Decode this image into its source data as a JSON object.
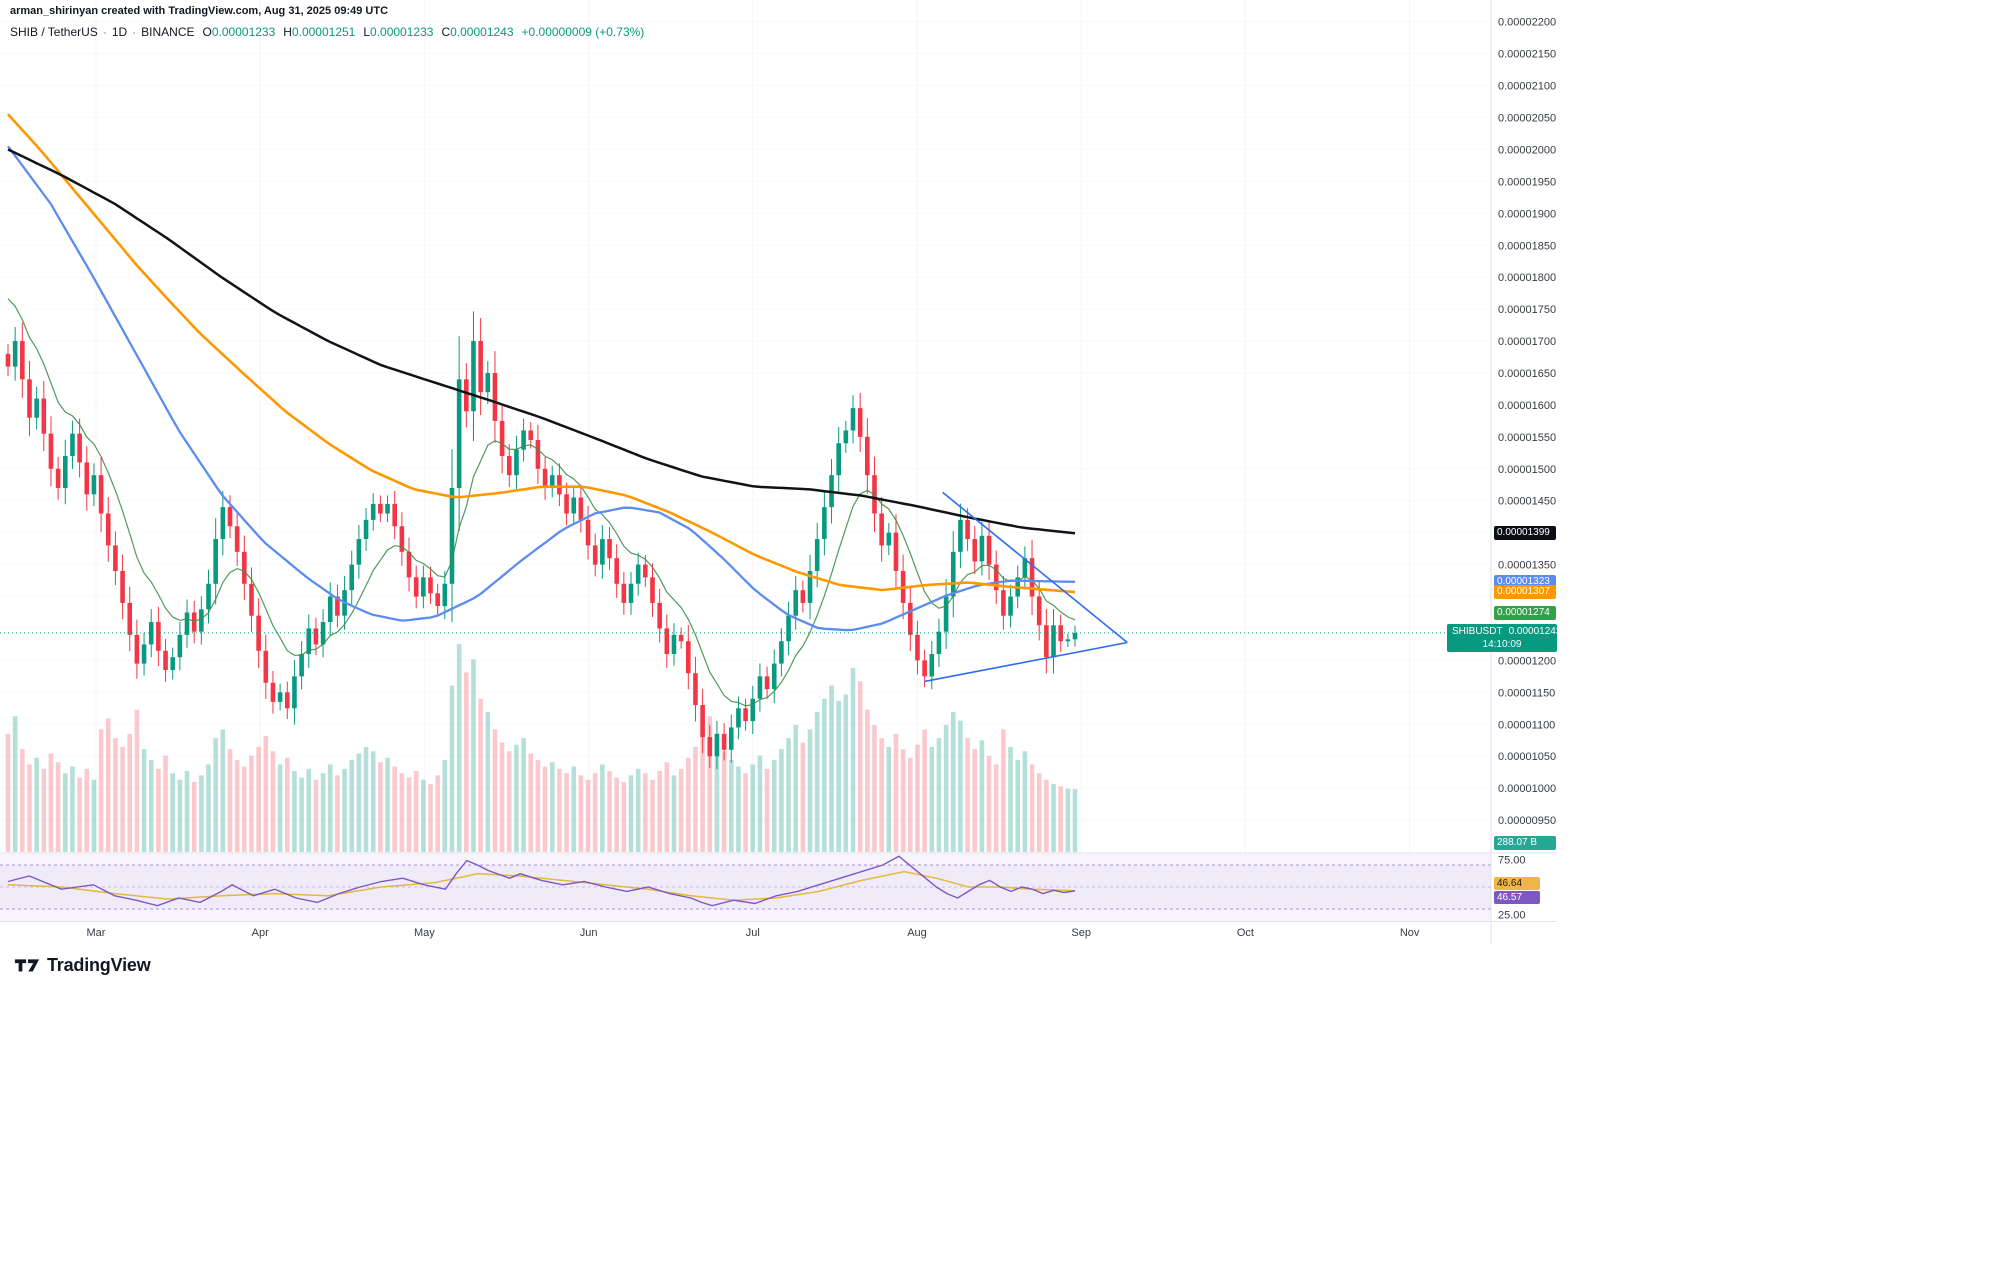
{
  "attribution": "arman_shirinyan created with TradingView.com, Aug 31, 2025 09:49 UTC",
  "header": {
    "symbol": "SHIB / TetherUS",
    "separator": "·",
    "interval": "1D",
    "exchange": "BINANCE",
    "ohlc": [
      {
        "label": "O",
        "value": "0.00001233"
      },
      {
        "label": "H",
        "value": "0.00001251"
      },
      {
        "label": "L",
        "value": "0.00001233"
      },
      {
        "label": "C",
        "value": "0.00001243"
      }
    ],
    "change": "+0.00000009 (+0.73%)"
  },
  "tags": {
    "ma_black": {
      "value": "0.00001399",
      "price": 1399,
      "bg": "#0c0e15",
      "fg": "#ffffff"
    },
    "ma_blue": {
      "value": "0.00001323",
      "price": 1323,
      "bg": "#5b8cf0",
      "fg": "#ffffff"
    },
    "ma_orange": {
      "value": "0.00001307",
      "price": 1307,
      "bg": "#ff9800",
      "fg": "#ffffff"
    },
    "ma_green": {
      "value": "0.00001274",
      "price": 1274,
      "bg": "#33a04a",
      "fg": "#ffffff"
    },
    "price": {
      "symbol": "SHIBUSDT",
      "value": "0.00001243",
      "countdown": "14:10:09",
      "price": 1243,
      "bg": "#089981",
      "fg": "#ffffff"
    },
    "volume": {
      "value": "288.07 B",
      "bg": "#27a795",
      "fg": "#ffffff"
    },
    "rsi_yellow": {
      "value": "46.64",
      "bg": "#efb547",
      "fg": "#1c1c1c"
    },
    "rsi_purple": {
      "value": "46.57",
      "bg": "#7e57c2",
      "fg": "#ffffff"
    },
    "rsi_upper": "75.00",
    "rsi_lower": "25.00"
  },
  "logo": {
    "text": "TradingView"
  },
  "chart_data": {
    "type": "candlestick",
    "symbol": "SHIBUSDT",
    "exchange": "BINANCE",
    "interval": "1D",
    "title": "SHIB / TetherUS · 1D · BINANCE",
    "price_unit": "1e-8 USDT (1243 = 0.00001243)",
    "ylim": [
      900,
      2234
    ],
    "tick_start": 2200,
    "tick_step": 50,
    "tick_end": 950,
    "months": [
      "Mar",
      "Apr",
      "May",
      "Jun",
      "Jul",
      "Aug",
      "Sep",
      "Oct",
      "Nov"
    ],
    "last_candle": {
      "o": "0.00001233",
      "h": "0.00001251",
      "l": "0.00001233",
      "c": "0.00001243"
    },
    "first_open": 1680,
    "closes": [
      1660,
      1700,
      1640,
      1580,
      1610,
      1555,
      1500,
      1470,
      1520,
      1555,
      1510,
      1460,
      1490,
      1430,
      1380,
      1340,
      1290,
      1240,
      1195,
      1225,
      1260,
      1215,
      1185,
      1205,
      1240,
      1275,
      1245,
      1280,
      1320,
      1390,
      1440,
      1410,
      1370,
      1320,
      1270,
      1215,
      1165,
      1135,
      1150,
      1125,
      1175,
      1210,
      1250,
      1225,
      1260,
      1300,
      1270,
      1310,
      1350,
      1390,
      1420,
      1445,
      1430,
      1445,
      1410,
      1370,
      1330,
      1300,
      1330,
      1305,
      1285,
      1320,
      1470,
      1640,
      1590,
      1700,
      1620,
      1650,
      1575,
      1520,
      1490,
      1530,
      1560,
      1545,
      1500,
      1470,
      1490,
      1460,
      1430,
      1455,
      1420,
      1380,
      1350,
      1390,
      1360,
      1320,
      1290,
      1320,
      1350,
      1330,
      1290,
      1250,
      1210,
      1240,
      1230,
      1180,
      1130,
      1080,
      1050,
      1085,
      1060,
      1095,
      1125,
      1105,
      1140,
      1175,
      1155,
      1195,
      1230,
      1270,
      1310,
      1290,
      1340,
      1390,
      1440,
      1490,
      1540,
      1560,
      1595,
      1550,
      1490,
      1430,
      1380,
      1400,
      1340,
      1290,
      1240,
      1200,
      1175,
      1210,
      1245,
      1300,
      1370,
      1420,
      1390,
      1355,
      1395,
      1350,
      1310,
      1270,
      1300,
      1330,
      1360,
      1300,
      1255,
      1205,
      1255,
      1230,
      1233,
      1243
    ],
    "volumes_billions": [
      540,
      620,
      470,
      400,
      430,
      380,
      450,
      410,
      360,
      390,
      340,
      380,
      330,
      560,
      610,
      520,
      480,
      540,
      650,
      470,
      420,
      380,
      440,
      360,
      330,
      370,
      320,
      350,
      400,
      520,
      560,
      470,
      420,
      390,
      440,
      480,
      530,
      460,
      400,
      430,
      370,
      340,
      380,
      330,
      360,
      400,
      350,
      380,
      420,
      450,
      480,
      460,
      410,
      430,
      390,
      360,
      340,
      370,
      330,
      310,
      350,
      420,
      760,
      950,
      820,
      880,
      700,
      640,
      560,
      500,
      460,
      490,
      520,
      450,
      420,
      390,
      410,
      380,
      360,
      390,
      350,
      330,
      360,
      400,
      370,
      340,
      320,
      350,
      380,
      360,
      330,
      370,
      410,
      350,
      380,
      430,
      480,
      560,
      620,
      540,
      460,
      420,
      390,
      360,
      400,
      440,
      380,
      420,
      470,
      520,
      580,
      500,
      560,
      640,
      700,
      760,
      690,
      720,
      840,
      780,
      650,
      580,
      520,
      480,
      540,
      470,
      430,
      490,
      560,
      480,
      520,
      580,
      640,
      600,
      520,
      470,
      510,
      440,
      400,
      560,
      480,
      420,
      460,
      400,
      360,
      330,
      310,
      300,
      290,
      288.07
    ],
    "volume_max_scale": 950,
    "last_volume": "288.07 B",
    "ma_overlays": [
      {
        "name": "ma-black-slow",
        "color": "#101418",
        "last": 1399,
        "points": [
          [
            0,
            2000
          ],
          [
            0.05,
            1960
          ],
          [
            0.1,
            1915
          ],
          [
            0.15,
            1860
          ],
          [
            0.2,
            1800
          ],
          [
            0.25,
            1745
          ],
          [
            0.3,
            1700
          ],
          [
            0.35,
            1662
          ],
          [
            0.4,
            1635
          ],
          [
            0.45,
            1608
          ],
          [
            0.5,
            1580
          ],
          [
            0.55,
            1548
          ],
          [
            0.6,
            1515
          ],
          [
            0.65,
            1488
          ],
          [
            0.7,
            1472
          ],
          [
            0.75,
            1468
          ],
          [
            0.8,
            1458
          ],
          [
            0.85,
            1442
          ],
          [
            0.9,
            1424
          ],
          [
            0.95,
            1408
          ],
          [
            1,
            1399
          ]
        ]
      },
      {
        "name": "ma-orange-mid",
        "color": "#ff9800",
        "last": 1307,
        "points": [
          [
            0,
            2055
          ],
          [
            0.03,
            2000
          ],
          [
            0.06,
            1940
          ],
          [
            0.09,
            1880
          ],
          [
            0.12,
            1820
          ],
          [
            0.15,
            1765
          ],
          [
            0.18,
            1712
          ],
          [
            0.22,
            1650
          ],
          [
            0.26,
            1590
          ],
          [
            0.3,
            1540
          ],
          [
            0.34,
            1498
          ],
          [
            0.38,
            1468
          ],
          [
            0.42,
            1455
          ],
          [
            0.46,
            1462
          ],
          [
            0.5,
            1472
          ],
          [
            0.54,
            1472
          ],
          [
            0.58,
            1458
          ],
          [
            0.62,
            1432
          ],
          [
            0.66,
            1400
          ],
          [
            0.7,
            1365
          ],
          [
            0.74,
            1338
          ],
          [
            0.78,
            1318
          ],
          [
            0.82,
            1310
          ],
          [
            0.86,
            1318
          ],
          [
            0.9,
            1322
          ],
          [
            0.94,
            1315
          ],
          [
            1,
            1307
          ]
        ]
      },
      {
        "name": "ma-blue-fast",
        "color": "#5b8cf0",
        "last": 1323,
        "points": [
          [
            0,
            2005
          ],
          [
            0.04,
            1915
          ],
          [
            0.08,
            1800
          ],
          [
            0.12,
            1680
          ],
          [
            0.16,
            1560
          ],
          [
            0.2,
            1460
          ],
          [
            0.24,
            1385
          ],
          [
            0.28,
            1330
          ],
          [
            0.31,
            1295
          ],
          [
            0.34,
            1272
          ],
          [
            0.37,
            1262
          ],
          [
            0.4,
            1268
          ],
          [
            0.44,
            1300
          ],
          [
            0.48,
            1355
          ],
          [
            0.52,
            1405
          ],
          [
            0.55,
            1430
          ],
          [
            0.58,
            1440
          ],
          [
            0.61,
            1432
          ],
          [
            0.64,
            1405
          ],
          [
            0.67,
            1360
          ],
          [
            0.7,
            1310
          ],
          [
            0.73,
            1272
          ],
          [
            0.76,
            1250
          ],
          [
            0.79,
            1247
          ],
          [
            0.82,
            1258
          ],
          [
            0.85,
            1280
          ],
          [
            0.88,
            1302
          ],
          [
            0.91,
            1318
          ],
          [
            0.94,
            1325
          ],
          [
            1,
            1323
          ]
        ]
      },
      {
        "name": "ema-green-short",
        "color": "#3c8f46",
        "last": 1274,
        "period": 10,
        "seed": 1790
      }
    ],
    "trendlines": [
      {
        "x1": 0.876,
        "p1": 1463,
        "x2": 1.049,
        "p2": 1228,
        "color": "#2e6bf0"
      },
      {
        "x1": 0.859,
        "p1": 1167,
        "x2": 1.049,
        "p2": 1228,
        "color": "#2e6bf0"
      }
    ],
    "current_price": 1243,
    "rsi": {
      "last": 46.57,
      "ma_last": 46.64,
      "levels": [
        70,
        50,
        30
      ],
      "range_labels": [
        "75.00",
        "25.00"
      ],
      "line_color": "#7e57c2",
      "ma_color": "#e2b93e",
      "purple_points": [
        [
          0,
          55
        ],
        [
          0.02,
          60
        ],
        [
          0.05,
          48
        ],
        [
          0.08,
          52
        ],
        [
          0.1,
          42
        ],
        [
          0.12,
          38
        ],
        [
          0.14,
          33
        ],
        [
          0.16,
          40
        ],
        [
          0.18,
          36
        ],
        [
          0.2,
          46
        ],
        [
          0.21,
          52
        ],
        [
          0.23,
          42
        ],
        [
          0.25,
          48
        ],
        [
          0.27,
          40
        ],
        [
          0.29,
          36
        ],
        [
          0.31,
          44
        ],
        [
          0.33,
          50
        ],
        [
          0.35,
          55
        ],
        [
          0.37,
          58
        ],
        [
          0.39,
          52
        ],
        [
          0.41,
          48
        ],
        [
          0.42,
          62
        ],
        [
          0.43,
          74
        ],
        [
          0.44,
          70
        ],
        [
          0.45,
          65
        ],
        [
          0.47,
          58
        ],
        [
          0.48,
          62
        ],
        [
          0.5,
          56
        ],
        [
          0.52,
          52
        ],
        [
          0.54,
          55
        ],
        [
          0.56,
          50
        ],
        [
          0.58,
          46
        ],
        [
          0.6,
          50
        ],
        [
          0.62,
          44
        ],
        [
          0.64,
          40
        ],
        [
          0.65,
          36
        ],
        [
          0.66,
          33
        ],
        [
          0.68,
          38
        ],
        [
          0.7,
          35
        ],
        [
          0.72,
          42
        ],
        [
          0.74,
          46
        ],
        [
          0.76,
          52
        ],
        [
          0.78,
          58
        ],
        [
          0.8,
          64
        ],
        [
          0.82,
          70
        ],
        [
          0.835,
          78
        ],
        [
          0.85,
          66
        ],
        [
          0.86,
          58
        ],
        [
          0.87,
          50
        ],
        [
          0.88,
          44
        ],
        [
          0.89,
          40
        ],
        [
          0.9,
          46
        ],
        [
          0.91,
          52
        ],
        [
          0.92,
          56
        ],
        [
          0.93,
          50
        ],
        [
          0.94,
          46
        ],
        [
          0.95,
          50
        ],
        [
          0.96,
          48
        ],
        [
          0.97,
          44
        ],
        [
          0.98,
          47
        ],
        [
          0.99,
          45
        ],
        [
          1,
          46.57
        ]
      ],
      "yellow_points": [
        [
          0,
          52
        ],
        [
          0.05,
          50
        ],
        [
          0.1,
          44
        ],
        [
          0.15,
          39
        ],
        [
          0.2,
          42
        ],
        [
          0.25,
          44
        ],
        [
          0.3,
          42
        ],
        [
          0.35,
          50
        ],
        [
          0.4,
          54
        ],
        [
          0.44,
          62
        ],
        [
          0.48,
          60
        ],
        [
          0.52,
          56
        ],
        [
          0.56,
          52
        ],
        [
          0.6,
          48
        ],
        [
          0.64,
          42
        ],
        [
          0.68,
          38
        ],
        [
          0.72,
          40
        ],
        [
          0.76,
          46
        ],
        [
          0.8,
          56
        ],
        [
          0.84,
          64
        ],
        [
          0.87,
          58
        ],
        [
          0.9,
          50
        ],
        [
          0.93,
          50
        ],
        [
          0.96,
          48
        ],
        [
          1,
          46.64
        ]
      ]
    }
  }
}
